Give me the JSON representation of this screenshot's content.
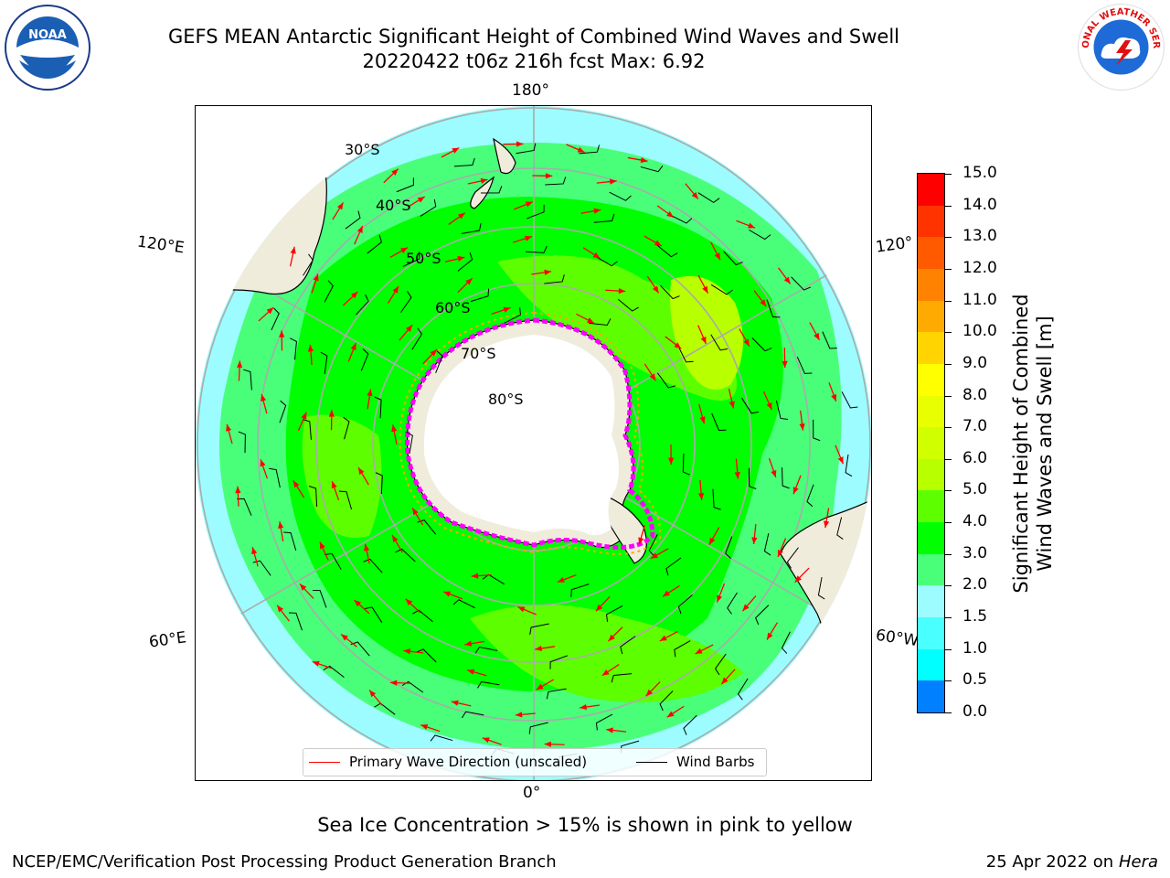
{
  "title": {
    "line1": "GEFS MEAN Antarctic Significant Height of Combined Wind Waves and Swell",
    "line2": "20220422 t06z 216h fcst   Max: 6.92"
  },
  "map": {
    "projection": "south polar stereographic",
    "lon_labels": {
      "top": "180°",
      "bottom": "0°",
      "upper_left": "120°E",
      "lower_left": "60°E",
      "upper_right": "120°",
      "lower_right": "60°W"
    },
    "lat_labels": [
      "30°S",
      "40°S",
      "50°S",
      "60°S",
      "70°S",
      "80°S"
    ],
    "land_color": "#efecdc",
    "ocean_edge_color": "#9cfcff",
    "wave_arrow_color": "#ff0000",
    "wind_barb_color": "#000000",
    "sea_ice_colors": [
      "#ff00ff",
      "#ffa500",
      "#ffff00"
    ]
  },
  "legend": {
    "wave_label": "Primary Wave Direction (unscaled)",
    "wind_label": "Wind Barbs"
  },
  "colorbar": {
    "label_line1": "Significant Height of Combined",
    "label_line2": "Wind Waves and Swell [m]",
    "ticks": [
      "15.0",
      "14.0",
      "13.0",
      "12.0",
      "11.0",
      "10.0",
      "9.0",
      "8.0",
      "7.0",
      "6.0",
      "5.0",
      "4.0",
      "3.0",
      "2.0",
      "1.5",
      "1.0",
      "0.5",
      "0.0"
    ],
    "colors_top_to_bottom": [
      "#ff0000",
      "#ff3300",
      "#ff5a00",
      "#ff8200",
      "#ffaa00",
      "#ffd400",
      "#ffff00",
      "#e7ff00",
      "#d0ff00",
      "#b8ff00",
      "#5dff00",
      "#00ff00",
      "#49ff7a",
      "#9cfcff",
      "#49ffff",
      "#00ffff",
      "#0080ff",
      "#0000ff"
    ]
  },
  "note": "Sea Ice Concentration > 15% is shown in pink to yellow",
  "footer": {
    "left": "NCEP/EMC/Verification Post Processing Product Generation Branch",
    "right_date": "25 Apr 2022 on ",
    "right_host": "Hera"
  },
  "logos": {
    "noaa_text": "NOAA",
    "nws_text": "NATIONAL WEATHER SERVICE"
  }
}
